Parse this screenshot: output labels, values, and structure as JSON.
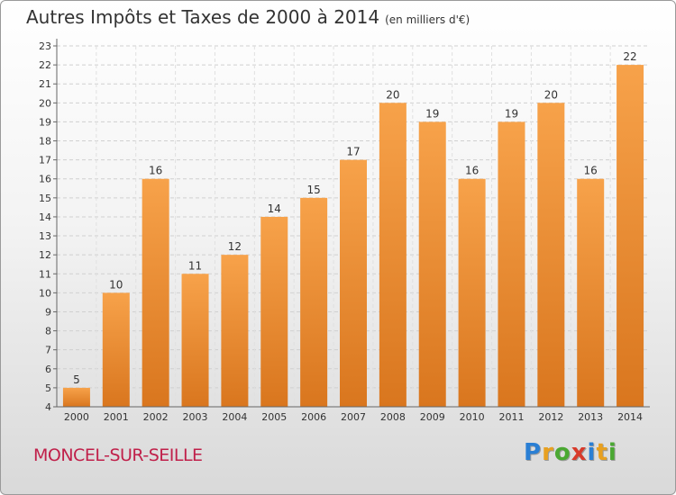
{
  "chart_data": {
    "type": "bar",
    "title": "Autres Impôts et Taxes de 2000 à 2014",
    "subtitle": "(en milliers d'€)",
    "categories": [
      "2000",
      "2001",
      "2002",
      "2003",
      "2004",
      "2005",
      "2006",
      "2007",
      "2008",
      "2009",
      "2010",
      "2011",
      "2012",
      "2013",
      "2014"
    ],
    "values": [
      5,
      10,
      16,
      11,
      12,
      14,
      15,
      17,
      20,
      19,
      16,
      19,
      20,
      16,
      22
    ],
    "ylim": [
      4,
      23
    ],
    "yticks": [
      4,
      5,
      6,
      7,
      8,
      9,
      10,
      11,
      12,
      13,
      14,
      15,
      16,
      17,
      18,
      19,
      20,
      21,
      22,
      23
    ],
    "grid": true,
    "bar_color_top": "#f7a24a",
    "bar_color_bottom": "#d9761e"
  },
  "commune": "MONCEL-SUR-SEILLE",
  "logo": {
    "letters": [
      {
        "char": "P",
        "color": "#2a7fd4"
      },
      {
        "char": "r",
        "color": "#e8a020"
      },
      {
        "char": "o",
        "color": "#4aa832"
      },
      {
        "char": "x",
        "color": "#d83a2a"
      },
      {
        "char": "i",
        "color": "#2a7fd4"
      },
      {
        "char": "t",
        "color": "#e8a020"
      },
      {
        "char": "i",
        "color": "#4aa832"
      }
    ]
  }
}
